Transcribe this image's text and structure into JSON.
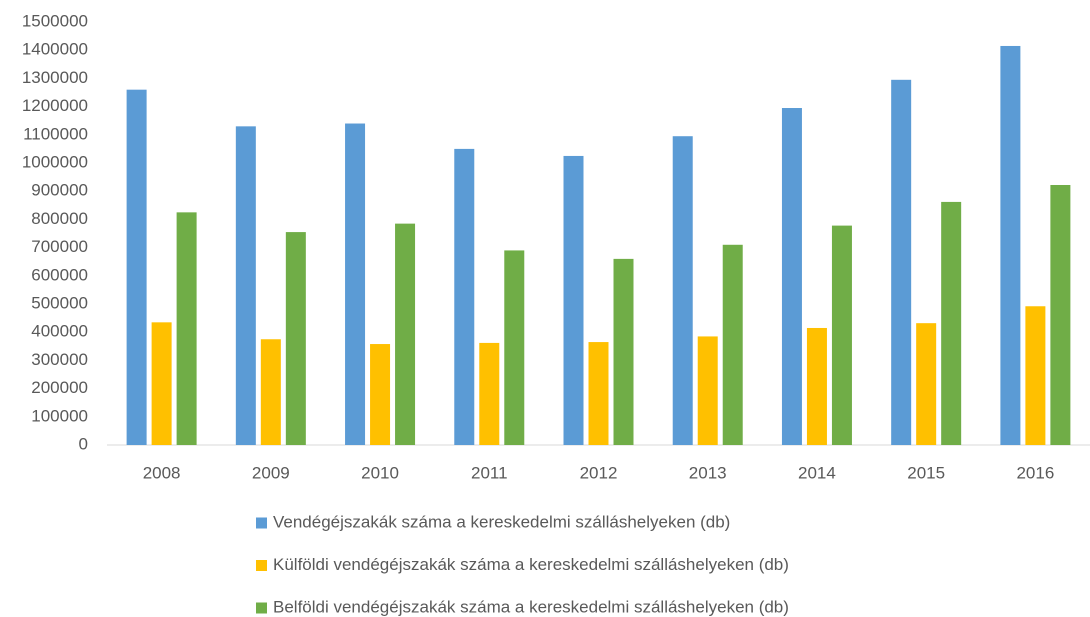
{
  "chart_data": {
    "type": "bar",
    "categories": [
      "2008",
      "2009",
      "2010",
      "2011",
      "2012",
      "2013",
      "2014",
      "2015",
      "2016"
    ],
    "series": [
      {
        "name": "Vendégéjszakák száma a kereskedelmi szálláshelyeken (db)",
        "color": "#5b9bd5",
        "values": [
          1260000,
          1130000,
          1140000,
          1050000,
          1025000,
          1095000,
          1195000,
          1295000,
          1415000
        ]
      },
      {
        "name": "Külföldi vendégéjszakák száma a kereskedelmi szálláshelyeken (db)",
        "color": "#ffc000",
        "values": [
          435000,
          375000,
          358000,
          362000,
          365000,
          385000,
          415000,
          432000,
          492000
        ]
      },
      {
        "name": "Belföldi vendégéjszakák száma a kereskedelmi szálláshelyeken (db)",
        "color": "#70ad47",
        "values": [
          825000,
          755000,
          785000,
          690000,
          660000,
          710000,
          778000,
          862000,
          922000
        ]
      }
    ],
    "ylim": [
      0,
      1500000
    ],
    "yticks": [
      0,
      100000,
      200000,
      300000,
      400000,
      500000,
      600000,
      700000,
      800000,
      900000,
      1000000,
      1100000,
      1200000,
      1300000,
      1400000,
      1500000
    ],
    "grid": false,
    "legend": "bottom"
  }
}
